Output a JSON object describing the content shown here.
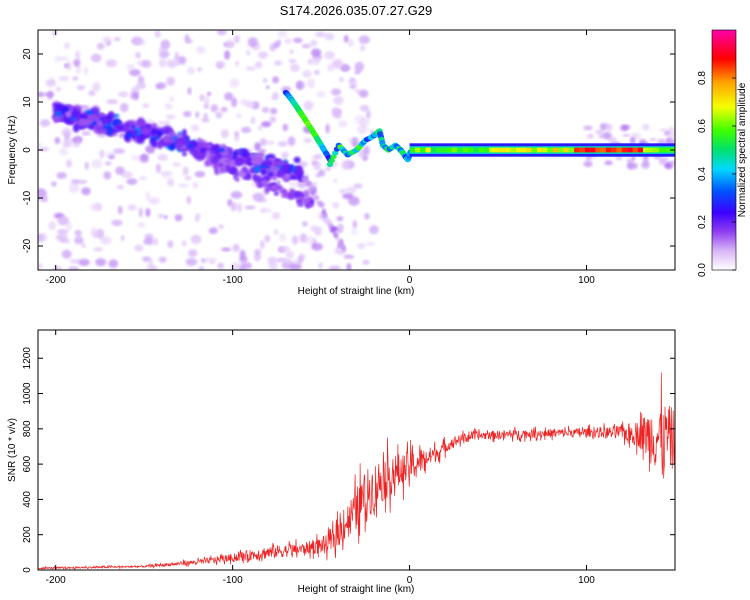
{
  "title": "S174.2026.035.07.27.G29",
  "chart_data": [
    {
      "type": "heatmap",
      "id": "spectrogram",
      "xlabel": "Height of straight line (km)",
      "ylabel": "Frequency (Hz)",
      "xlim": [
        -210,
        150
      ],
      "ylim": [
        -25,
        25
      ],
      "xticks": [
        -200,
        -100,
        0,
        100
      ],
      "xtick_labels": [
        "-200",
        "-100",
        "0",
        "100"
      ],
      "yticks": [
        -20,
        -10,
        0,
        10,
        20
      ],
      "ytick_labels": [
        "-20",
        "-10",
        "0",
        "10",
        "20"
      ],
      "colorbar": {
        "label": "Normalized spectral amplitude",
        "range": [
          0,
          1
        ],
        "ticks": [
          0,
          0.2,
          0.4,
          0.6,
          0.8
        ],
        "tick_labels": [
          "0.0",
          "0.2",
          "0.4",
          "0.6",
          "0.8"
        ],
        "colormap": [
          "#ffffff",
          "#d8b6f7",
          "#8f3df0",
          "#3a00ff",
          "#0055ff",
          "#00d8ff",
          "#00e070",
          "#3cff00",
          "#f5ff00",
          "#ffa500",
          "#ff0000",
          "#ff00aa"
        ]
      },
      "features": [
        {
          "name": "noise-band",
          "x": [
            -200,
            -60
          ],
          "frequency": [
            8,
            -5
          ],
          "amplitude": 0.2
        },
        {
          "name": "curved-track",
          "x": [
            -70,
            -45
          ],
          "frequency": [
            12,
            -2
          ],
          "amplitude": 0.5
        },
        {
          "name": "stable-tone",
          "x": [
            0,
            150
          ],
          "frequency": [
            0,
            0
          ],
          "amplitude": 0.9
        }
      ]
    },
    {
      "type": "line",
      "id": "snr",
      "xlabel": "Height of straight line (km)",
      "ylabel": "SNR (10 * v/v)",
      "xlim": [
        -210,
        150
      ],
      "ylim": [
        0,
        1360
      ],
      "xticks": [
        -200,
        -100,
        0,
        100
      ],
      "xtick_labels": [
        "-200",
        "-100",
        "0",
        "100"
      ],
      "yticks": [
        0,
        200,
        400,
        600,
        800,
        1000,
        1200
      ],
      "ytick_labels": [
        "0",
        "200",
        "400",
        "600",
        "800",
        "1000",
        "1200"
      ],
      "color": "#ee2222",
      "trend": {
        "x": [
          -210,
          -150,
          -120,
          -100,
          -80,
          -60,
          -45,
          -35,
          -25,
          -15,
          -5,
          5,
          15,
          25,
          35,
          60,
          100,
          120,
          130,
          140,
          150
        ],
        "snr": [
          10,
          20,
          45,
          70,
          100,
          120,
          150,
          280,
          420,
          520,
          560,
          610,
          660,
          730,
          760,
          770,
          780,
          780,
          770,
          760,
          750
        ],
        "spread": [
          8,
          10,
          25,
          40,
          70,
          60,
          100,
          180,
          260,
          240,
          180,
          130,
          80,
          50,
          45,
          45,
          45,
          70,
          140,
          380,
          300
        ]
      }
    }
  ]
}
